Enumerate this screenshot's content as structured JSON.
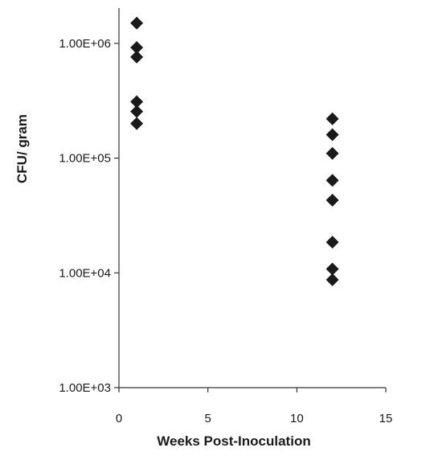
{
  "chart_data": {
    "type": "scatter",
    "title": "",
    "xlabel": "Weeks Post-Inoculation",
    "ylabel": "CFU/ gram",
    "xlim": [
      0,
      15
    ],
    "ylim": [
      1000,
      3000000
    ],
    "yscale": "log",
    "grid": false,
    "legend": "none",
    "marker": "diamond",
    "marker_color": "#1a1a1a",
    "x_ticks": [
      {
        "value": 0,
        "label": "0"
      },
      {
        "value": 5,
        "label": "5"
      },
      {
        "value": 10,
        "label": "10"
      },
      {
        "value": 15,
        "label": "15"
      }
    ],
    "y_ticks": [
      {
        "value": 1000,
        "label": "1.00E+03"
      },
      {
        "value": 10000,
        "label": "1.00E+04"
      },
      {
        "value": 100000,
        "label": "1.00E+05"
      },
      {
        "value": 1000000,
        "label": "1.00E+06"
      }
    ],
    "series": [
      {
        "points": [
          {
            "x": 1,
            "y": 1500000
          },
          {
            "x": 1,
            "y": 920000
          },
          {
            "x": 1,
            "y": 760000
          },
          {
            "x": 1,
            "y": 310000
          },
          {
            "x": 1,
            "y": 255000
          },
          {
            "x": 1,
            "y": 200000
          },
          {
            "x": 12,
            "y": 220000
          },
          {
            "x": 12,
            "y": 160000
          },
          {
            "x": 12,
            "y": 110000
          },
          {
            "x": 12,
            "y": 64000
          },
          {
            "x": 12,
            "y": 43000
          },
          {
            "x": 12,
            "y": 18500
          },
          {
            "x": 12,
            "y": 10800
          },
          {
            "x": 12,
            "y": 8700
          }
        ]
      }
    ]
  }
}
